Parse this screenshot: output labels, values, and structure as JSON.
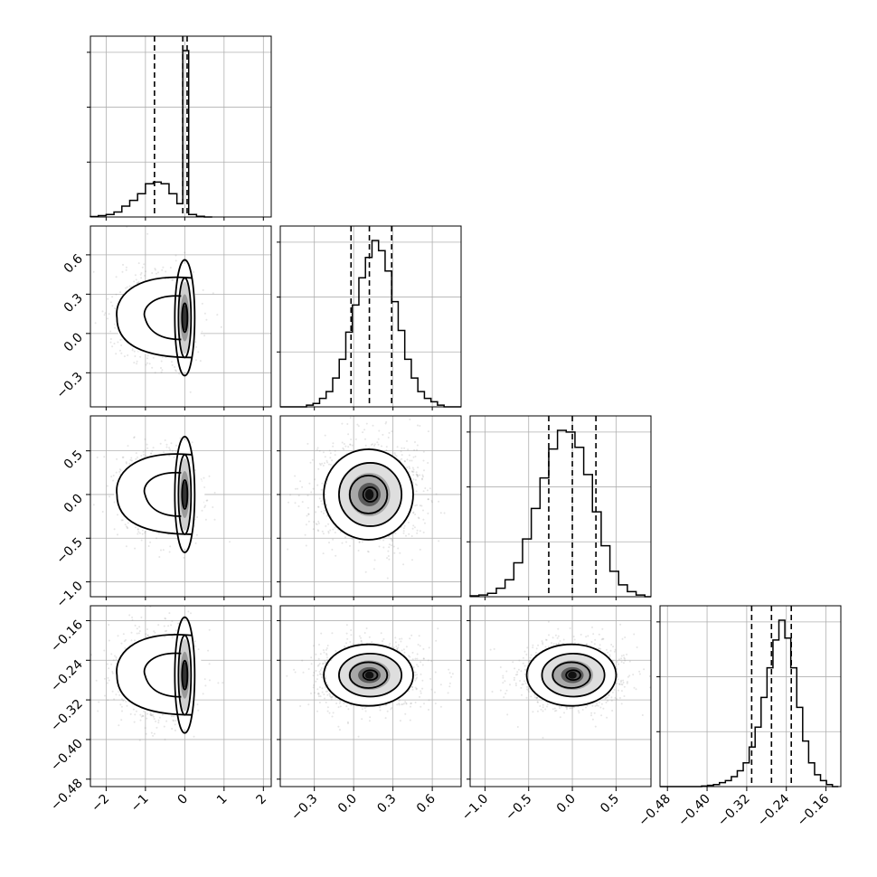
{
  "chart_data": {
    "type": "corner",
    "parameters": [
      {
        "range": [
          -2.4,
          2.2
        ],
        "ticks": [
          -2,
          -1,
          0,
          1,
          2
        ],
        "tick_labels": [
          "−2",
          "−1",
          "0",
          "1",
          "2"
        ]
      },
      {
        "range": [
          -0.56,
          0.82
        ],
        "ticks": [
          -0.3,
          0.0,
          0.3,
          0.6
        ],
        "tick_labels": [
          "−0.3",
          "0.0",
          "0.3",
          "0.6"
        ]
      },
      {
        "range": [
          -1.17,
          0.9
        ],
        "ticks": [
          -1.0,
          -0.5,
          0.0,
          0.5
        ],
        "tick_labels": [
          "−1.0",
          "−0.5",
          "0.0",
          "0.5"
        ]
      },
      {
        "range": [
          -0.495,
          -0.13
        ],
        "ticks": [
          -0.48,
          -0.4,
          -0.32,
          -0.24,
          -0.16
        ],
        "tick_labels": [
          "−0.48",
          "−0.40",
          "−0.32",
          "−0.24",
          "−0.16"
        ]
      }
    ],
    "histograms": [
      {
        "bin_edges": [
          -2.4,
          -2.2,
          -2.0,
          -1.8,
          -1.6,
          -1.4,
          -1.2,
          -1.0,
          -0.8,
          -0.6,
          -0.4,
          -0.2,
          -0.05,
          0.1,
          0.3,
          0.5,
          0.7
        ],
        "counts": [
          0.3,
          0.8,
          1.5,
          3.0,
          6.5,
          10,
          14,
          20,
          21,
          20,
          14,
          8,
          100,
          1.5,
          0.4,
          0
        ],
        "quantiles": [
          -0.77,
          -0.05,
          0.06
        ]
      },
      {
        "bin_edges": [
          -0.56,
          -0.51,
          -0.46,
          -0.41,
          -0.36,
          -0.31,
          -0.26,
          -0.21,
          -0.16,
          -0.11,
          -0.06,
          -0.01,
          0.04,
          0.09,
          0.14,
          0.19,
          0.24,
          0.29,
          0.34,
          0.39,
          0.44,
          0.49,
          0.54,
          0.59,
          0.64,
          0.69,
          0.74,
          0.82
        ],
        "counts": [
          0,
          0,
          0,
          0,
          1,
          2,
          5,
          9,
          17,
          28,
          44,
          60,
          76,
          88,
          98,
          92,
          80,
          62,
          45,
          28,
          17,
          9,
          5,
          3,
          1,
          0,
          0
        ],
        "quantiles": [
          -0.02,
          0.12,
          0.29
        ]
      },
      {
        "bin_edges": [
          -1.17,
          -1.07,
          -0.97,
          -0.87,
          -0.77,
          -0.67,
          -0.57,
          -0.47,
          -0.37,
          -0.27,
          -0.17,
          -0.07,
          0.03,
          0.13,
          0.23,
          0.33,
          0.43,
          0.53,
          0.63,
          0.73,
          0.83,
          0.9
        ],
        "counts": [
          0.5,
          1,
          2,
          5,
          10,
          20,
          34,
          52,
          70,
          87,
          98,
          97,
          88,
          72,
          50,
          30,
          15,
          7,
          3,
          1,
          0
        ],
        "quantiles": [
          -0.27,
          0.0,
          0.27
        ]
      },
      {
        "bin_edges": [
          -0.495,
          -0.483,
          -0.471,
          -0.459,
          -0.447,
          -0.435,
          -0.423,
          -0.411,
          -0.399,
          -0.387,
          -0.375,
          -0.363,
          -0.351,
          -0.339,
          -0.327,
          -0.315,
          -0.303,
          -0.291,
          -0.279,
          -0.267,
          -0.255,
          -0.243,
          -0.231,
          -0.219,
          -0.207,
          -0.195,
          -0.183,
          -0.171,
          -0.159,
          -0.147,
          -0.135
        ],
        "counts": [
          0,
          0,
          0,
          0,
          0,
          0,
          0,
          0.3,
          0.6,
          1,
          2,
          3,
          5,
          8,
          12,
          20,
          30,
          45,
          60,
          74,
          84,
          75,
          60,
          40,
          23,
          12,
          6,
          3,
          1,
          0
        ],
        "quantiles": [
          -0.31,
          -0.27,
          -0.23
        ]
      }
    ],
    "pairs": [
      {
        "row": 1,
        "col": 0,
        "contour_shape": "bimodal",
        "center": [
          0.0,
          0.12
        ],
        "wide_center": [
          -0.6,
          0.12
        ]
      },
      {
        "row": 2,
        "col": 0,
        "contour_shape": "bimodal",
        "center": [
          0.0,
          0.0
        ],
        "wide_center": [
          -0.6,
          0.0
        ]
      },
      {
        "row": 3,
        "col": 0,
        "contour_shape": "bimodal",
        "center": [
          0.0,
          -0.27
        ],
        "wide_center": [
          -0.6,
          -0.27
        ]
      },
      {
        "row": 2,
        "col": 1,
        "contour_shape": "gaussian",
        "center": [
          0.12,
          0.0
        ]
      },
      {
        "row": 3,
        "col": 1,
        "contour_shape": "gaussian",
        "center": [
          0.12,
          -0.27
        ]
      },
      {
        "row": 3,
        "col": 2,
        "contour_shape": "gaussian",
        "center": [
          0.0,
          -0.27
        ]
      }
    ],
    "grid": true,
    "colors": {
      "density": "#000000",
      "scatter": "#888888",
      "contour": "#000000"
    }
  }
}
